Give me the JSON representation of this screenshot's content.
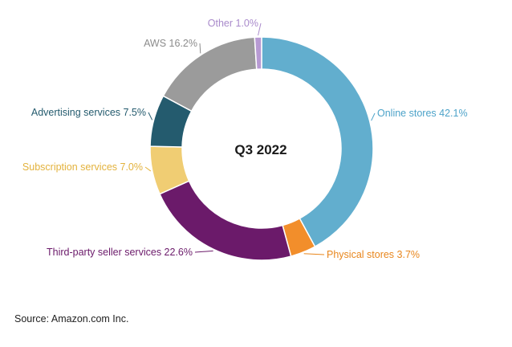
{
  "chart_data": {
    "type": "pie",
    "center_label": "Q3 2022",
    "slices": [
      {
        "label": "Online stores 42.1%",
        "value": 42.1,
        "color": "#62AECE"
      },
      {
        "label": "Physical stores 3.7%",
        "value": 3.7,
        "color": "#F28E2B"
      },
      {
        "label": "Third-party seller services 22.6%",
        "value": 22.6,
        "color": "#6B1A6A"
      },
      {
        "label": "Subscription services 7.0%",
        "value": 7.0,
        "color": "#F0CD73"
      },
      {
        "label": "Advertising services 7.5%",
        "value": 7.5,
        "color": "#245B6E"
      },
      {
        "label": "AWS 16.2%",
        "value": 16.2,
        "color": "#9B9B9B"
      },
      {
        "label": "Other 1.0%",
        "value": 1.0,
        "color": "#B79AD3"
      }
    ]
  },
  "source": "Source: Amazon.com Inc."
}
